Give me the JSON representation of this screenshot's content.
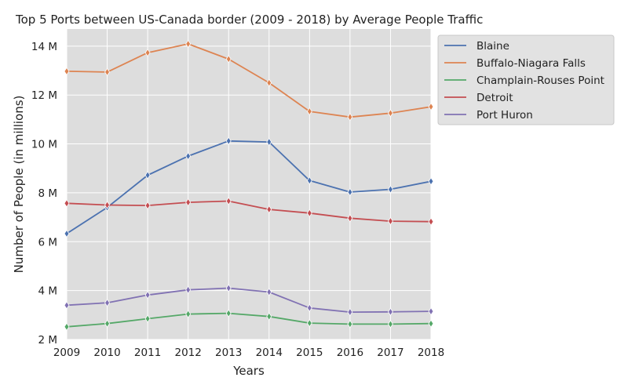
{
  "chart_data": {
    "type": "line",
    "title": "Top 5 Ports between US-Canada border (2009 - 2018) by Average People Traffic",
    "xlabel": "Years",
    "ylabel": "Number of People (in millions)",
    "x": [
      2009,
      2010,
      2011,
      2012,
      2013,
      2014,
      2015,
      2016,
      2017,
      2018
    ],
    "xlim": [
      2009,
      2018
    ],
    "ylim": [
      2,
      14.7
    ],
    "yticks": [
      2,
      4,
      6,
      8,
      10,
      12,
      14
    ],
    "ytick_labels": [
      "2 M",
      "4 M",
      "6 M",
      "8 M",
      "10 M",
      "12 M",
      "14 M"
    ],
    "xtick_labels": [
      "2009",
      "2010",
      "2011",
      "2012",
      "2013",
      "2014",
      "2015",
      "2016",
      "2017",
      "2018"
    ],
    "grid": true,
    "legend_position": "upper-right-outside",
    "series": [
      {
        "name": "Blaine",
        "color": "#4c72b0",
        "values": [
          6.33,
          7.4,
          8.72,
          9.5,
          10.12,
          10.08,
          8.5,
          8.03,
          8.14,
          8.47
        ]
      },
      {
        "name": "Buffalo-Niagara Falls",
        "color": "#dd8452",
        "values": [
          12.97,
          12.94,
          13.73,
          14.09,
          13.47,
          12.5,
          11.33,
          11.1,
          11.26,
          11.52
        ]
      },
      {
        "name": "Champlain-Rouses Point",
        "color": "#55a868",
        "values": [
          2.52,
          2.65,
          2.85,
          3.04,
          3.07,
          2.94,
          2.67,
          2.63,
          2.63,
          2.65
        ]
      },
      {
        "name": "Detroit",
        "color": "#c44e52",
        "values": [
          7.57,
          7.5,
          7.48,
          7.61,
          7.66,
          7.32,
          7.17,
          6.96,
          6.84,
          6.82
        ]
      },
      {
        "name": "Port Huron",
        "color": "#8172b3",
        "values": [
          3.4,
          3.5,
          3.82,
          4.03,
          4.1,
          3.94,
          3.29,
          3.12,
          3.13,
          3.15
        ]
      }
    ]
  }
}
